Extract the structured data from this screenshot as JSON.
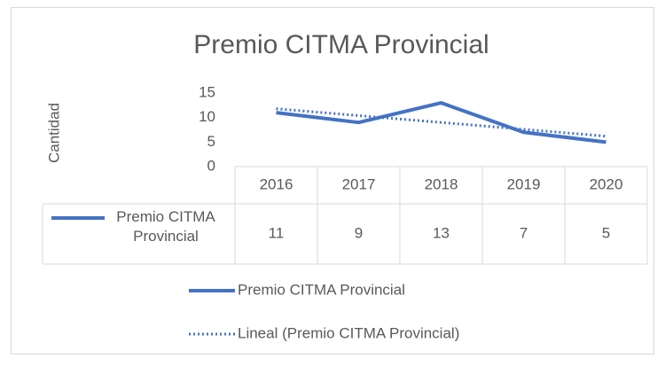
{
  "chart_data": {
    "type": "line",
    "title": "Premio CITMA Provincial",
    "y_label": "Cantidad",
    "categories": [
      "2016",
      "2017",
      "2018",
      "2019",
      "2020"
    ],
    "series": [
      {
        "name": "Premio CITMA Provincial",
        "color": "#4472c4",
        "values": [
          11,
          9,
          13,
          7,
          5
        ]
      }
    ],
    "trendline": {
      "name": "Lineal (Premio CITMA Provincial)",
      "type": "linear",
      "color": "#4472c4"
    },
    "ylim": [
      0,
      15
    ],
    "yticks": [
      0,
      5,
      10,
      15
    ],
    "grid": false,
    "data_table": true,
    "legend": "bottom"
  }
}
